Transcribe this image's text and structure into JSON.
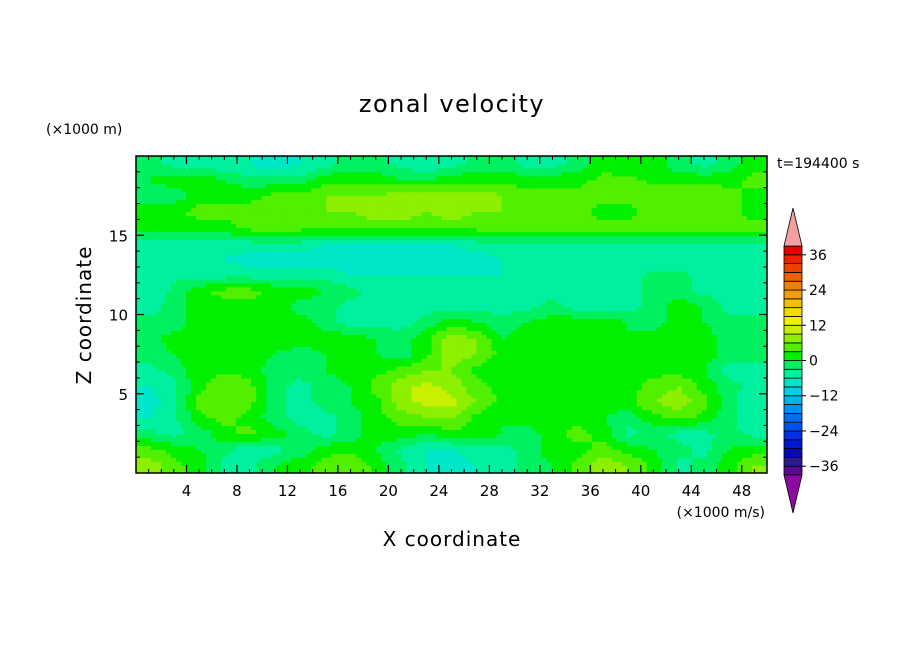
{
  "chart_data": {
    "type": "heatmap",
    "title": "zonal velocity",
    "xlabel": "X coordinate",
    "ylabel": "Z coordinate",
    "x_unit": "(×1000 m/s)",
    "y_unit": "(×1000 m)",
    "time_label": "t=194400 s",
    "xlim": [
      0,
      50
    ],
    "ylim": [
      0,
      20
    ],
    "x_ticks": [
      4,
      8,
      12,
      16,
      20,
      24,
      28,
      32,
      36,
      40,
      44,
      48
    ],
    "y_ticks": [
      5,
      10,
      15
    ],
    "colorbar": {
      "levels": [
        -42,
        -39,
        -36,
        -33,
        -30,
        -27,
        -24,
        -21,
        -18,
        -15,
        -12,
        -9,
        -6,
        -3,
        0,
        3,
        6,
        9,
        12,
        15,
        18,
        21,
        24,
        27,
        30,
        33,
        36,
        39,
        42
      ],
      "colors": [
        "#5a0a8c",
        "#2a1a9a",
        "#0a0ab4",
        "#0018d2",
        "#0030e6",
        "#0050f0",
        "#0070f0",
        "#0090f0",
        "#00b4f0",
        "#00d2e6",
        "#00e6c8",
        "#00f0a0",
        "#00f060",
        "#00f000",
        "#50f000",
        "#8cf000",
        "#c8f000",
        "#f0f000",
        "#f0dc00",
        "#f0c000",
        "#f0a000",
        "#f08000",
        "#f06000",
        "#f04000",
        "#f02000",
        "#e60000"
      ],
      "tick_labels": [
        "36",
        "24",
        "12",
        "0",
        "−12",
        "−24",
        "−36"
      ],
      "tick_values": [
        36,
        24,
        12,
        0,
        -12,
        -24,
        -36
      ],
      "over_color": "#f5a0a0",
      "under_color": "#8c0aa0"
    },
    "field": {
      "z_centers": [
        0.5,
        1.5,
        2.5,
        3.5,
        4.5,
        5.5,
        6.5,
        7.5,
        8.5,
        9.5,
        10.5,
        11.5,
        12.5,
        13.5,
        14.5,
        15.5,
        16.5,
        17.5,
        18.5,
        19.5
      ],
      "x_centers": [
        1,
        3,
        5,
        7,
        9,
        11,
        13,
        15,
        17,
        19,
        21,
        23,
        25,
        27,
        29,
        31,
        33,
        35,
        37,
        39,
        41,
        43,
        45,
        47,
        49
      ],
      "values": [
        [
          8,
          4,
          2,
          -4,
          -4,
          0,
          2,
          4,
          6,
          2,
          -2,
          -6,
          -8,
          -6,
          -4,
          -2,
          0,
          4,
          8,
          6,
          2,
          -4,
          -2,
          2,
          6
        ],
        [
          4,
          2,
          0,
          -2,
          -6,
          -4,
          -2,
          2,
          2,
          0,
          -4,
          -6,
          -6,
          -4,
          -4,
          -2,
          2,
          2,
          4,
          2,
          0,
          -2,
          -4,
          0,
          2
        ],
        [
          -2,
          -4,
          -2,
          2,
          4,
          2,
          -2,
          -4,
          -2,
          2,
          2,
          0,
          2,
          2,
          0,
          -2,
          2,
          4,
          2,
          -4,
          -2,
          -4,
          -4,
          -2,
          -4
        ],
        [
          -6,
          -4,
          2,
          4,
          2,
          -2,
          -4,
          -4,
          -2,
          2,
          4,
          6,
          6,
          2,
          0,
          2,
          2,
          2,
          0,
          -2,
          2,
          4,
          2,
          -2,
          -6
        ],
        [
          -8,
          -4,
          4,
          6,
          4,
          -2,
          -4,
          -2,
          0,
          2,
          8,
          10,
          10,
          6,
          2,
          0,
          2,
          2,
          2,
          2,
          6,
          8,
          4,
          -2,
          -6
        ],
        [
          -6,
          -4,
          2,
          6,
          4,
          -2,
          -4,
          -2,
          0,
          4,
          8,
          10,
          8,
          4,
          2,
          0,
          2,
          2,
          2,
          2,
          4,
          6,
          2,
          -2,
          -4
        ],
        [
          -4,
          -2,
          2,
          2,
          2,
          -2,
          -2,
          0,
          2,
          2,
          4,
          6,
          6,
          2,
          0,
          2,
          2,
          0,
          2,
          2,
          2,
          2,
          0,
          -4,
          -4
        ],
        [
          -2,
          0,
          2,
          2,
          2,
          0,
          -2,
          0,
          2,
          0,
          -2,
          2,
          8,
          6,
          2,
          2,
          2,
          2,
          2,
          2,
          0,
          2,
          2,
          -2,
          -2
        ],
        [
          -2,
          2,
          2,
          2,
          2,
          2,
          2,
          2,
          2,
          0,
          -2,
          2,
          8,
          6,
          0,
          2,
          2,
          2,
          2,
          0,
          2,
          2,
          2,
          -2,
          -2
        ],
        [
          -2,
          -2,
          2,
          2,
          2,
          2,
          2,
          -2,
          -4,
          -4,
          -4,
          -2,
          2,
          0,
          -2,
          0,
          2,
          2,
          2,
          0,
          -2,
          2,
          0,
          -2,
          -2
        ],
        [
          -4,
          -2,
          2,
          2,
          2,
          2,
          -2,
          -2,
          -4,
          -4,
          -4,
          -4,
          -4,
          -4,
          -4,
          -4,
          -2,
          -4,
          -4,
          -4,
          -2,
          2,
          0,
          -4,
          -4
        ],
        [
          -6,
          -2,
          2,
          4,
          4,
          2,
          2,
          0,
          -2,
          -4,
          -4,
          -4,
          -4,
          -4,
          -4,
          -4,
          -4,
          -4,
          -4,
          -4,
          -2,
          -2,
          -4,
          -4,
          -6
        ],
        [
          -6,
          -4,
          -4,
          -4,
          -4,
          -4,
          -4,
          -4,
          -6,
          -6,
          -6,
          -6,
          -6,
          -6,
          -6,
          -4,
          -4,
          -4,
          -4,
          -4,
          -2,
          -2,
          -4,
          -4,
          -4
        ],
        [
          -6,
          -6,
          -6,
          -6,
          -8,
          -8,
          -8,
          -8,
          -8,
          -8,
          -8,
          -8,
          -8,
          -8,
          -6,
          -6,
          -6,
          -6,
          -6,
          -6,
          -6,
          -6,
          -6,
          -6,
          -6
        ],
        [
          -4,
          -4,
          -4,
          -4,
          -4,
          -4,
          -4,
          -6,
          -6,
          -6,
          -6,
          -6,
          -6,
          -4,
          -4,
          -4,
          -4,
          -4,
          -4,
          -4,
          -4,
          -4,
          -4,
          -4,
          -4
        ],
        [
          2,
          2,
          2,
          2,
          4,
          4,
          4,
          4,
          4,
          4,
          4,
          4,
          4,
          4,
          4,
          4,
          4,
          4,
          4,
          4,
          4,
          4,
          4,
          4,
          4
        ],
        [
          2,
          2,
          4,
          4,
          4,
          6,
          6,
          6,
          6,
          8,
          8,
          6,
          8,
          6,
          6,
          4,
          4,
          4,
          2,
          2,
          4,
          4,
          4,
          4,
          2
        ],
        [
          -2,
          -2,
          2,
          2,
          2,
          4,
          4,
          6,
          6,
          6,
          8,
          8,
          8,
          8,
          6,
          4,
          4,
          4,
          4,
          4,
          6,
          6,
          6,
          4,
          2
        ],
        [
          0,
          2,
          2,
          0,
          -2,
          -2,
          -2,
          2,
          2,
          2,
          0,
          0,
          2,
          2,
          2,
          2,
          2,
          2,
          4,
          4,
          2,
          2,
          2,
          2,
          4
        ],
        [
          -2,
          -4,
          -4,
          -6,
          -6,
          -8,
          -6,
          -4,
          -2,
          -2,
          -4,
          -6,
          -4,
          -2,
          -2,
          -4,
          -4,
          -2,
          2,
          0,
          2,
          -2,
          -4,
          -2,
          2
        ]
      ]
    }
  }
}
